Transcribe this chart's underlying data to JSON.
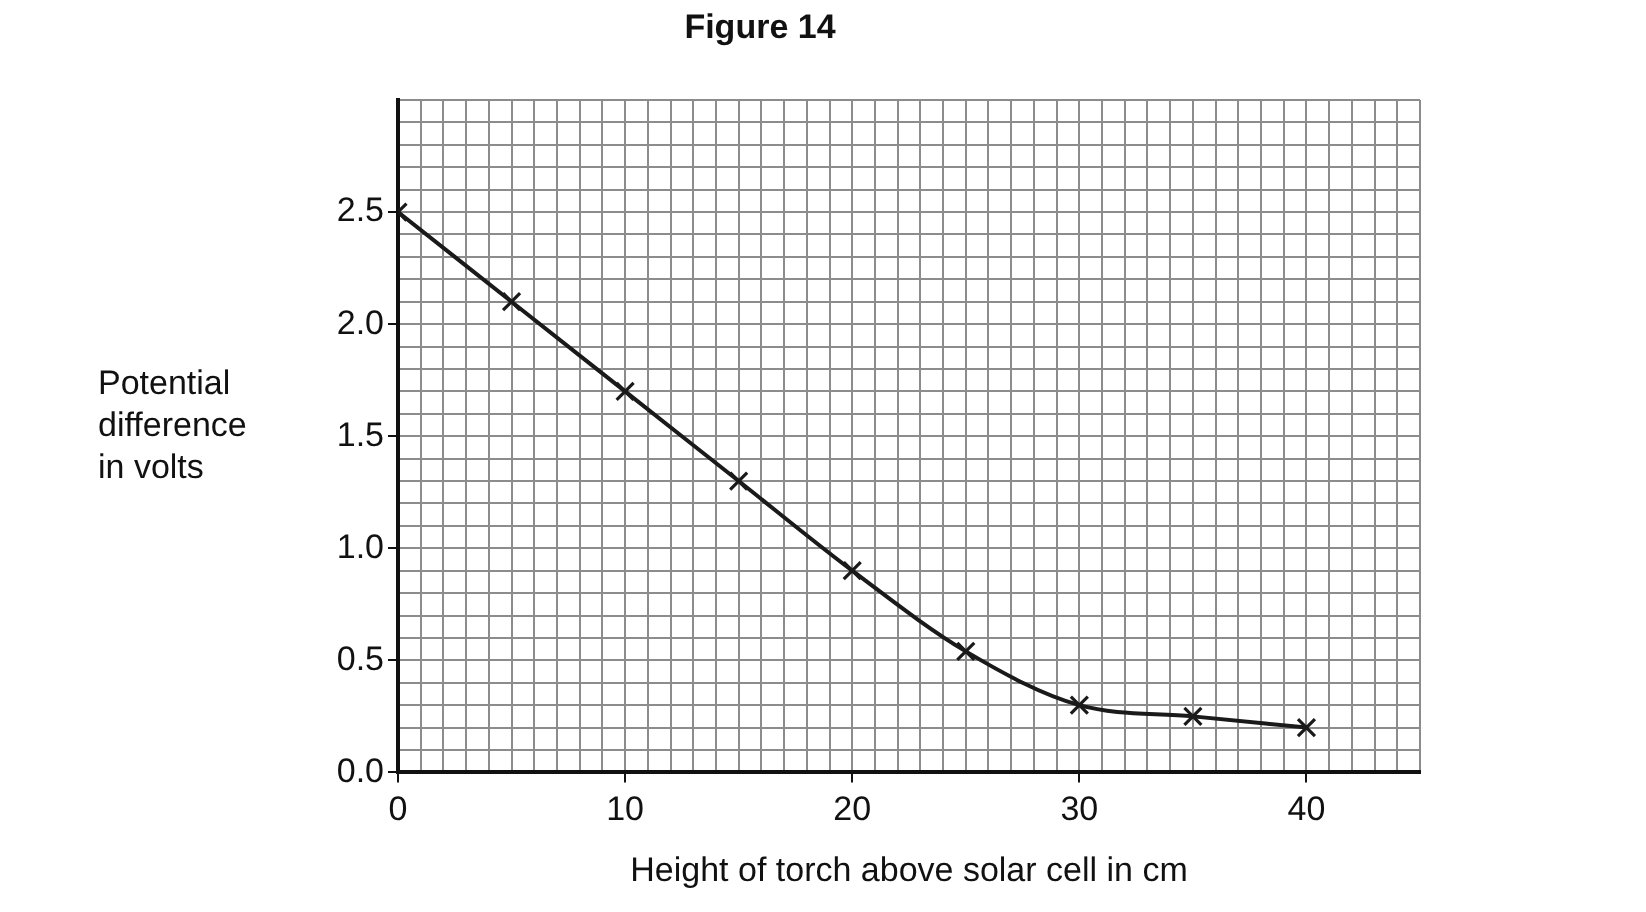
{
  "chart_data": {
    "type": "line",
    "title": "Figure 14",
    "xlabel": "Height of torch above solar cell in cm",
    "ylabel": "Potential difference in volts",
    "x": [
      0,
      5,
      10,
      15,
      20,
      25,
      30,
      35,
      40
    ],
    "series": [
      {
        "color": "#1a1a1a",
        "values": [
          2.5,
          2.1,
          1.7,
          1.3,
          0.9,
          0.54,
          0.3,
          0.25,
          0.2
        ]
      }
    ],
    "xlim": [
      0,
      45
    ],
    "xticks": [
      0,
      10,
      20,
      30,
      40
    ],
    "ylim": [
      0,
      3
    ],
    "yticks": [
      {
        "value": 0,
        "label": "0.0"
      },
      0.5,
      {
        "value": 1,
        "label": "1.0"
      },
      1.5,
      {
        "value": 2,
        "label": "2.0"
      },
      2.5
    ],
    "grid": true,
    "legend": false,
    "marker": "cross",
    "line_style": "solid"
  }
}
